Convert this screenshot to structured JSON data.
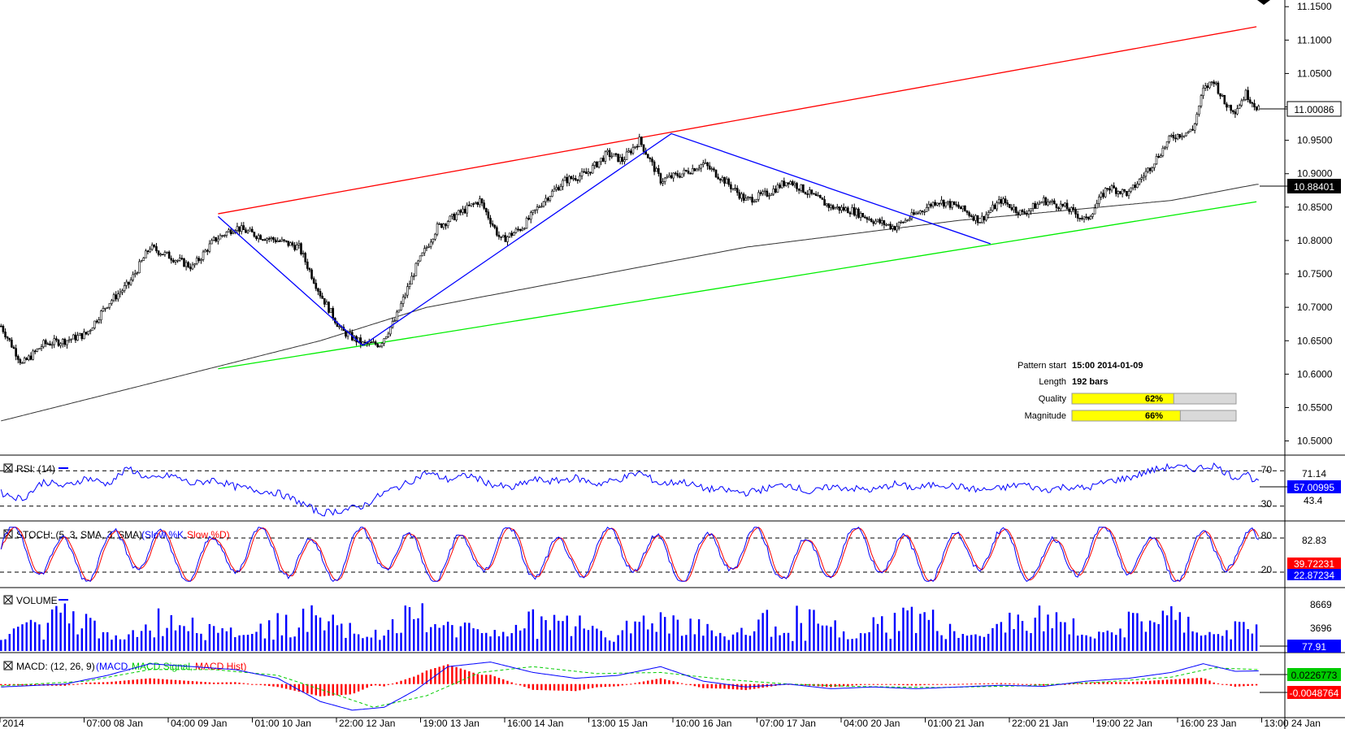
{
  "chart_data": {
    "type": "candlestick",
    "main": {
      "y_axis_ticks": [
        "11.1500",
        "11.1000",
        "11.0500",
        "11.0000",
        "10.9500",
        "10.9000",
        "10.8500",
        "10.8000",
        "10.7500",
        "10.7000",
        "10.6500",
        "10.6000",
        "10.5500",
        "10.5000"
      ],
      "ylim": [
        10.48,
        11.16
      ],
      "current_price": "11.00086",
      "ma_value": "10.88401",
      "close_path": [
        [
          0,
          10.672
        ],
        [
          10,
          10.615
        ],
        [
          20,
          10.645
        ],
        [
          30,
          10.65
        ],
        [
          40,
          10.66
        ],
        [
          50,
          10.705
        ],
        [
          60,
          10.735
        ],
        [
          70,
          10.79
        ],
        [
          80,
          10.775
        ],
        [
          90,
          10.76
        ],
        [
          100,
          10.8
        ],
        [
          110,
          10.82
        ],
        [
          120,
          10.808
        ],
        [
          130,
          10.8
        ],
        [
          140,
          10.79
        ],
        [
          150,
          10.72
        ],
        [
          160,
          10.665
        ],
        [
          170,
          10.645
        ],
        [
          178,
          10.645
        ],
        [
          185,
          10.68
        ],
        [
          195,
          10.76
        ],
        [
          205,
          10.82
        ],
        [
          215,
          10.84
        ],
        [
          225,
          10.86
        ],
        [
          235,
          10.8
        ],
        [
          245,
          10.82
        ],
        [
          255,
          10.86
        ],
        [
          265,
          10.89
        ],
        [
          275,
          10.9
        ],
        [
          285,
          10.93
        ],
        [
          292,
          10.92
        ],
        [
          300,
          10.95
        ],
        [
          310,
          10.89
        ],
        [
          320,
          10.9
        ],
        [
          330,
          10.915
        ],
        [
          340,
          10.89
        ],
        [
          350,
          10.86
        ],
        [
          360,
          10.87
        ],
        [
          370,
          10.89
        ],
        [
          380,
          10.87
        ],
        [
          390,
          10.85
        ],
        [
          400,
          10.845
        ],
        [
          410,
          10.83
        ],
        [
          420,
          10.82
        ],
        [
          430,
          10.84
        ],
        [
          440,
          10.86
        ],
        [
          450,
          10.85
        ],
        [
          460,
          10.83
        ],
        [
          470,
          10.86
        ],
        [
          480,
          10.84
        ],
        [
          490,
          10.86
        ],
        [
          500,
          10.85
        ],
        [
          510,
          10.83
        ],
        [
          520,
          10.88
        ],
        [
          530,
          10.87
        ],
        [
          540,
          10.91
        ],
        [
          550,
          10.955
        ],
        [
          560,
          10.965
        ],
        [
          565,
          11.025
        ],
        [
          570,
          11.04
        ],
        [
          575,
          11.005
        ],
        [
          580,
          10.995
        ],
        [
          585,
          11.02
        ],
        [
          590,
          11.0
        ]
      ],
      "ma_path": [
        [
          0,
          10.53
        ],
        [
          100,
          10.61
        ],
        [
          150,
          10.65
        ],
        [
          200,
          10.7
        ],
        [
          250,
          10.73
        ],
        [
          300,
          10.76
        ],
        [
          350,
          10.79
        ],
        [
          400,
          10.81
        ],
        [
          450,
          10.83
        ],
        [
          500,
          10.845
        ],
        [
          550,
          10.86
        ],
        [
          590,
          10.884
        ]
      ],
      "upper_channel": {
        "x": [
          102,
          590
        ],
        "y": [
          10.84,
          11.12
        ]
      },
      "lower_channel": {
        "x": [
          102,
          590
        ],
        "y": [
          10.608,
          10.858
        ]
      },
      "pattern_zigzag": [
        [
          102,
          10.836
        ],
        [
          170,
          10.643
        ],
        [
          315,
          10.96
        ],
        [
          465,
          10.795
        ]
      ],
      "pattern_info": {
        "start_label": "Pattern start",
        "start_value": "15:00 2014-01-09",
        "length_label": "Length",
        "length_value": "192 bars",
        "quality_label": "Quality",
        "quality_value": "62%",
        "quality_fraction": 0.62,
        "magnitude_label": "Magnitude",
        "magnitude_value": "66%",
        "magnitude_fraction": 0.66
      }
    },
    "rsi": {
      "title": "RSI: (14)",
      "levels": [
        "70",
        "30"
      ],
      "right_labels": [
        "71.14",
        "57.00995",
        "43.4"
      ],
      "ylim": [
        15,
        85
      ],
      "path": [
        [
          0,
          45
        ],
        [
          10,
          38
        ],
        [
          20,
          58
        ],
        [
          30,
          52
        ],
        [
          40,
          62
        ],
        [
          50,
          55
        ],
        [
          60,
          73
        ],
        [
          70,
          60
        ],
        [
          80,
          65
        ],
        [
          90,
          55
        ],
        [
          100,
          60
        ],
        [
          110,
          52
        ],
        [
          120,
          48
        ],
        [
          130,
          45
        ],
        [
          140,
          35
        ],
        [
          150,
          22
        ],
        [
          160,
          25
        ],
        [
          170,
          30
        ],
        [
          180,
          45
        ],
        [
          190,
          55
        ],
        [
          200,
          68
        ],
        [
          210,
          60
        ],
        [
          220,
          65
        ],
        [
          230,
          55
        ],
        [
          240,
          50
        ],
        [
          250,
          60
        ],
        [
          260,
          58
        ],
        [
          270,
          62
        ],
        [
          280,
          55
        ],
        [
          290,
          60
        ],
        [
          300,
          68
        ],
        [
          310,
          55
        ],
        [
          320,
          58
        ],
        [
          330,
          50
        ],
        [
          340,
          48
        ],
        [
          350,
          45
        ],
        [
          360,
          50
        ],
        [
          370,
          55
        ],
        [
          380,
          45
        ],
        [
          390,
          52
        ],
        [
          400,
          50
        ],
        [
          410,
          48
        ],
        [
          420,
          55
        ],
        [
          430,
          50
        ],
        [
          440,
          55
        ],
        [
          450,
          52
        ],
        [
          460,
          48
        ],
        [
          470,
          50
        ],
        [
          480,
          55
        ],
        [
          490,
          48
        ],
        [
          500,
          52
        ],
        [
          510,
          50
        ],
        [
          520,
          58
        ],
        [
          530,
          62
        ],
        [
          540,
          70
        ],
        [
          550,
          75
        ],
        [
          560,
          72
        ],
        [
          570,
          76
        ],
        [
          580,
          62
        ],
        [
          585,
          68
        ],
        [
          590,
          57
        ]
      ]
    },
    "stoch": {
      "title": "STOCH: (5, 3, SMA, 3, SMA)",
      "legend": [
        "(Slow %K,",
        "Slow %D)"
      ],
      "levels": [
        "80",
        "20"
      ],
      "right_labels": [
        "82.83",
        "39.72231",
        "22.87234"
      ]
    },
    "volume": {
      "title": "VOLUME",
      "right_labels": [
        "8669",
        "3696",
        "77.91"
      ],
      "ylim": [
        0,
        10000
      ]
    },
    "macd": {
      "title": "MACD: (12, 26, 9)",
      "legend": [
        "(MACD,",
        "MACD Signal,",
        "MACD Hist)"
      ],
      "right_labels": [
        "0.0226773",
        "-0.0048764"
      ],
      "ylim": [
        -0.055,
        0.05
      ],
      "macd_path": [
        [
          0,
          -0.005
        ],
        [
          30,
          0.0
        ],
        [
          50,
          0.015
        ],
        [
          70,
          0.035
        ],
        [
          90,
          0.03
        ],
        [
          110,
          0.025
        ],
        [
          130,
          0.01
        ],
        [
          150,
          -0.03
        ],
        [
          165,
          -0.045
        ],
        [
          180,
          -0.04
        ],
        [
          195,
          -0.01
        ],
        [
          210,
          0.03
        ],
        [
          230,
          0.038
        ],
        [
          250,
          0.02
        ],
        [
          270,
          0.01
        ],
        [
          290,
          0.015
        ],
        [
          310,
          0.03
        ],
        [
          330,
          0.005
        ],
        [
          350,
          -0.005
        ],
        [
          370,
          0.0
        ],
        [
          390,
          -0.008
        ],
        [
          410,
          -0.005
        ],
        [
          430,
          -0.008
        ],
        [
          450,
          -0.005
        ],
        [
          470,
          -0.002
        ],
        [
          490,
          -0.004
        ],
        [
          510,
          0.005
        ],
        [
          530,
          0.01
        ],
        [
          550,
          0.02
        ],
        [
          565,
          0.035
        ],
        [
          580,
          0.022
        ],
        [
          590,
          0.0227
        ]
      ],
      "signal_path": [
        [
          0,
          -0.003
        ],
        [
          40,
          0.005
        ],
        [
          70,
          0.025
        ],
        [
          100,
          0.025
        ],
        [
          130,
          0.015
        ],
        [
          155,
          -0.015
        ],
        [
          175,
          -0.04
        ],
        [
          200,
          -0.02
        ],
        [
          225,
          0.02
        ],
        [
          250,
          0.03
        ],
        [
          280,
          0.018
        ],
        [
          310,
          0.02
        ],
        [
          340,
          0.008
        ],
        [
          370,
          0.0
        ],
        [
          400,
          -0.004
        ],
        [
          440,
          -0.006
        ],
        [
          480,
          -0.003
        ],
        [
          520,
          0.004
        ],
        [
          550,
          0.012
        ],
        [
          570,
          0.028
        ],
        [
          590,
          0.025
        ]
      ]
    },
    "x_axis_ticks": [
      "2014",
      "07:00 08 Jan",
      "04:00 09 Jan",
      "01:00 10 Jan",
      "22:00 12 Jan",
      "19:00 13 Jan",
      "16:00 14 Jan",
      "13:00 15 Jan",
      "10:00 16 Jan",
      "07:00 17 Jan",
      "04:00 20 Jan",
      "01:00 21 Jan",
      "22:00 21 Jan",
      "19:00 22 Jan",
      "16:00 23 Jan",
      "13:00 24 Jan"
    ]
  }
}
